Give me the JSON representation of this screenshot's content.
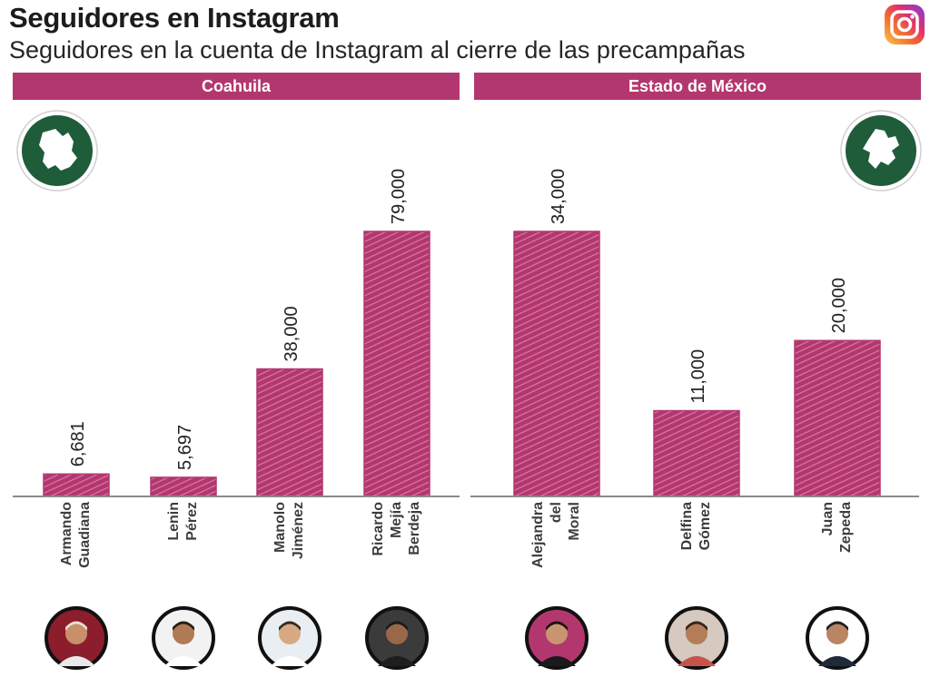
{
  "header": {
    "title": "Seguidores en Instagram",
    "subtitle": "Seguidores en la cuenta de Instagram al cierre de las precampañas"
  },
  "icons": {
    "brand": "instagram-logo-icon",
    "coahuila_map": "coahuila-map-icon",
    "edomex_map": "estado-de-mexico-map-icon"
  },
  "colors": {
    "bar": "#b3376f",
    "header": "#b3376f",
    "map_badge": "#1f5c3a",
    "baseline": "#8a8a8a"
  },
  "chart_data": [
    {
      "type": "bar",
      "panel": "Coahuila",
      "categories": [
        "Armando Guadiana",
        "Lenin Pérez",
        "Manolo Jiménez",
        "Ricardo Mejía Berdeja"
      ],
      "name_lines": [
        [
          "Armando",
          "Guadiana"
        ],
        [
          "Lenin",
          "Pérez"
        ],
        [
          "Manolo",
          "Jiménez"
        ],
        [
          "Ricardo",
          "Mejía",
          "Berdeja"
        ]
      ],
      "values": [
        6681,
        5697,
        38000,
        79000
      ],
      "value_labels": [
        "6,681",
        "5,697",
        "38,000",
        "79,000"
      ],
      "ylim": [
        0,
        79000
      ],
      "xlabel": "",
      "ylabel": "",
      "grid": false
    },
    {
      "type": "bar",
      "panel": "Estado de México",
      "categories": [
        "Alejandra del Moral",
        "Delfina Gómez",
        "Juan Zepeda"
      ],
      "name_lines": [
        [
          "Alejandra",
          "del",
          "Moral"
        ],
        [
          "Delfina",
          "Gómez"
        ],
        [
          "Juan",
          "Zepeda"
        ]
      ],
      "values": [
        34000,
        11000,
        20000
      ],
      "value_labels": [
        "34,000",
        "11,000",
        "20,000"
      ],
      "ylim": [
        0,
        34000
      ],
      "xlabel": "",
      "ylabel": "",
      "grid": false
    }
  ]
}
